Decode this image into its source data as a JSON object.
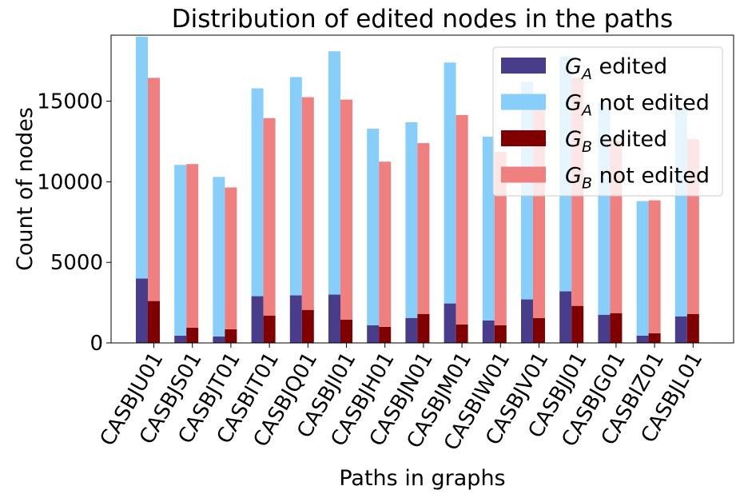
{
  "chart_data": {
    "type": "bar",
    "stacked": true,
    "title": "Distribution of edited nodes in the paths",
    "xlabel": "Paths in graphs",
    "ylabel": "Count of nodes",
    "ylim": [
      0,
      19100
    ],
    "yticks": [
      0,
      5000,
      10000,
      15000
    ],
    "categories": [
      "CASBJU01",
      "CASBJS01",
      "CASBJT01",
      "CASBIT01",
      "CASBJQ01",
      "CASBJI01",
      "CASBJH01",
      "CASBJN01",
      "CASBJM01",
      "CASBIW01",
      "CASBJV01",
      "CASBJJ01",
      "CASBJG01",
      "CASBIZ01",
      "CASBJL01"
    ],
    "legend_position": "upper-right",
    "series": [
      {
        "name": "G_A edited",
        "label_base": "G",
        "label_sub": "A",
        "label_rest": " edited",
        "color": "#483d8b",
        "group": "A",
        "stack": "bottom",
        "values": [
          4000,
          450,
          400,
          2900,
          2950,
          3000,
          1100,
          1550,
          2450,
          1400,
          2700,
          3200,
          1750,
          450,
          1650
        ]
      },
      {
        "name": "G_A not edited",
        "label_base": "G",
        "label_sub": "A",
        "label_rest": " not edited",
        "color": "#87cefa",
        "group": "A",
        "stack": "top",
        "values": [
          15000,
          10600,
          9900,
          12900,
          13550,
          15100,
          12200,
          12150,
          14950,
          11400,
          13500,
          14600,
          13150,
          8350,
          12950
        ]
      },
      {
        "name": "G_B edited",
        "label_base": "G",
        "label_sub": "B",
        "label_rest": " edited",
        "color": "#800000",
        "group": "B",
        "stack": "bottom",
        "values": [
          2600,
          950,
          850,
          1700,
          2050,
          1450,
          1000,
          1800,
          1150,
          1100,
          1550,
          2300,
          1850,
          600,
          1800
        ]
      },
      {
        "name": "G_B not edited",
        "label_base": "G",
        "label_sub": "B",
        "label_rest": " not edited",
        "color": "#f08080",
        "group": "B",
        "stack": "top",
        "values": [
          13850,
          10150,
          8800,
          12250,
          13200,
          13650,
          10250,
          10600,
          13000,
          10750,
          13300,
          14150,
          10700,
          8250,
          10850
        ]
      }
    ]
  }
}
